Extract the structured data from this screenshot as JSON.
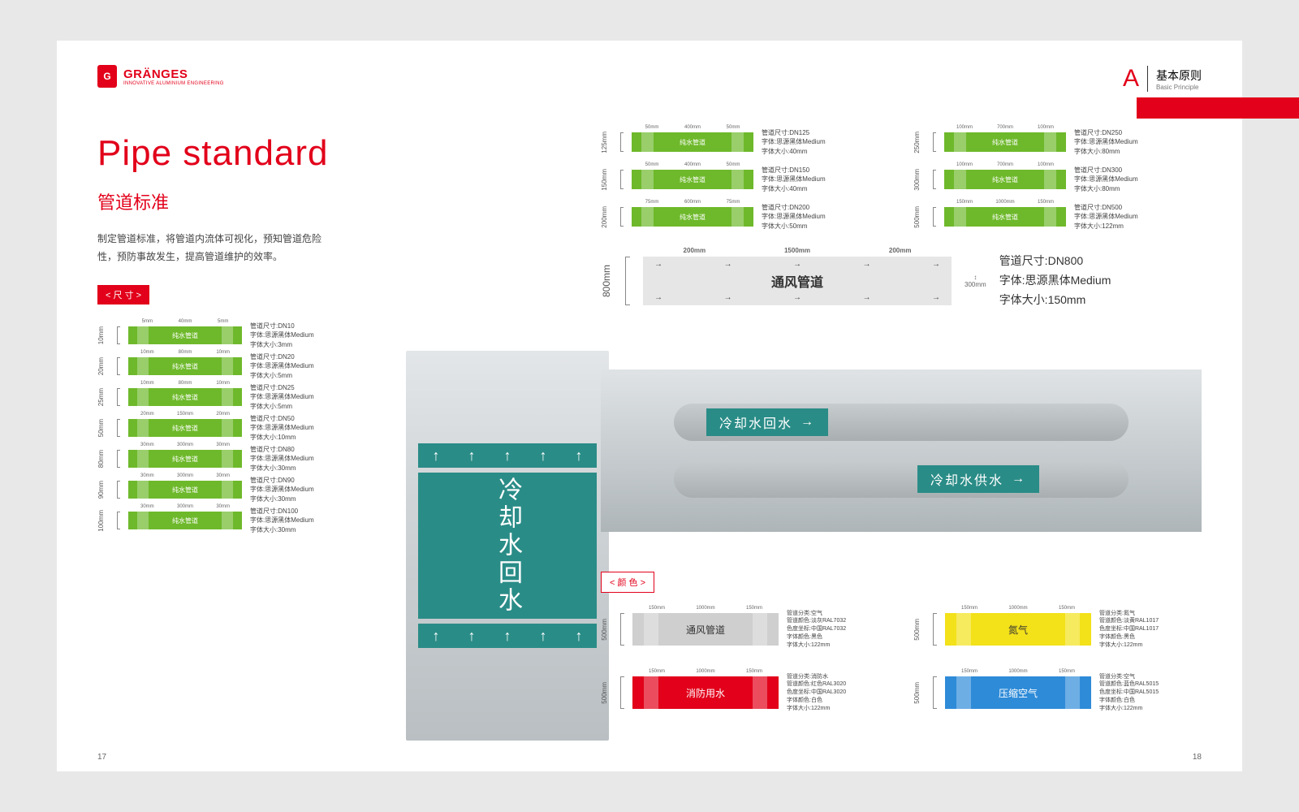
{
  "brand": {
    "name": "GRÄNGES",
    "tagline": "INNOVATIVE ALUMINIUM ENGINEERING",
    "mark": "G"
  },
  "section": {
    "letter": "A",
    "title_cn": "基本原则",
    "title_en": "Basic Principle"
  },
  "title_en": "Pipe standard",
  "title_cn": "管道标准",
  "desc": "制定管道标准，将管道内流体可视化，预知管道危险性，预防事故发生，提高管道维护的效率。",
  "tag_size": "< 尺 寸 >",
  "tag_color": "< 颜 色 >",
  "green": "#6eb92b",
  "label_text": "纯水管道",
  "font_name": "思源黑体Medium",
  "spec_prefix_size": "管道尺寸:",
  "spec_prefix_font": "字体:",
  "spec_prefix_fs": "字体大小:",
  "left_sizes": [
    {
      "h": "10mm",
      "dn": "DN10",
      "fs": "3mm",
      "d1": "5mm",
      "d2": "40mm",
      "d3": "5mm"
    },
    {
      "h": "20mm",
      "dn": "DN20",
      "fs": "5mm",
      "d1": "10mm",
      "d2": "80mm",
      "d3": "10mm"
    },
    {
      "h": "25mm",
      "dn": "DN25",
      "fs": "5mm",
      "d1": "10mm",
      "d2": "80mm",
      "d3": "10mm"
    },
    {
      "h": "50mm",
      "dn": "DN50",
      "fs": "10mm",
      "d1": "20mm",
      "d2": "150mm",
      "d3": "20mm"
    },
    {
      "h": "80mm",
      "dn": "DN80",
      "fs": "30mm",
      "d1": "30mm",
      "d2": "300mm",
      "d3": "30mm"
    },
    {
      "h": "90mm",
      "dn": "DN90",
      "fs": "30mm",
      "d1": "30mm",
      "d2": "300mm",
      "d3": "30mm"
    },
    {
      "h": "100mm",
      "dn": "DN100",
      "fs": "30mm",
      "d1": "30mm",
      "d2": "300mm",
      "d3": "30mm"
    }
  ],
  "right_sizes": [
    {
      "h": "125mm",
      "dn": "DN125",
      "fs": "40mm",
      "d1": "50mm",
      "d2": "400mm",
      "d3": "50mm"
    },
    {
      "h": "250mm",
      "dn": "DN250",
      "fs": "80mm",
      "d1": "100mm",
      "d2": "700mm",
      "d3": "100mm"
    },
    {
      "h": "150mm",
      "dn": "DN150",
      "fs": "40mm",
      "d1": "50mm",
      "d2": "400mm",
      "d3": "50mm"
    },
    {
      "h": "300mm",
      "dn": "DN300",
      "fs": "80mm",
      "d1": "100mm",
      "d2": "700mm",
      "d3": "100mm"
    },
    {
      "h": "200mm",
      "dn": "DN200",
      "fs": "50mm",
      "d1": "75mm",
      "d2": "600mm",
      "d3": "75mm"
    },
    {
      "h": "500mm",
      "dn": "DN500",
      "fs": "122mm",
      "d1": "150mm",
      "d2": "1000mm",
      "d3": "150mm"
    }
  ],
  "big": {
    "h": "800mm",
    "label": "通风管道",
    "dn": "DN800",
    "fs": "150mm",
    "d1": "200mm",
    "d2": "1500mm",
    "d3": "200mm",
    "side": "300mm"
  },
  "photo1_label": "冷却水回水",
  "photo2_label1": "冷却水回水",
  "photo2_label2": "冷却水供水",
  "colors": [
    {
      "h": "500mm",
      "name": "通风管道",
      "bg": "#cfcfcf",
      "fg": "#333333",
      "l1": "管道分类:空气",
      "l2": "管道颜色:淡灰RAL7032",
      "l3": "色度坐标:中国RAL7032",
      "l4": "字体颜色:黑色",
      "l5": "字体大小:122mm"
    },
    {
      "h": "500mm",
      "name": "氮气",
      "bg": "#f3e11a",
      "fg": "#333333",
      "l1": "管道分类:氮气",
      "l2": "管道颜色:淡黄RAL1017",
      "l3": "色度坐标:中国RAL1017",
      "l4": "字体颜色:黑色",
      "l5": "字体大小:122mm"
    },
    {
      "h": "500mm",
      "name": "消防用水",
      "bg": "#e2001a",
      "fg": "#ffffff",
      "l1": "管道分类:消防水",
      "l2": "管道颜色:红色RAL3020",
      "l3": "色度坐标:中国RAL3020",
      "l4": "字体颜色:白色",
      "l5": "字体大小:122mm"
    },
    {
      "h": "500mm",
      "name": "压缩空气",
      "bg": "#2e8bd8",
      "fg": "#ffffff",
      "l1": "管道分类:空气",
      "l2": "管道颜色:蓝色RAL5015",
      "l3": "色度坐标:中国RAL5015",
      "l4": "字体颜色:白色",
      "l5": "字体大小:122mm"
    }
  ],
  "page_left": "17",
  "page_right": "18"
}
